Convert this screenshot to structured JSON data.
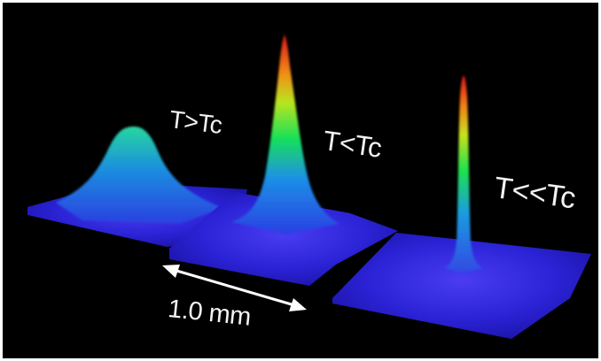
{
  "labels": {
    "above_tc": "T>Tc",
    "below_tc": "T<Tc",
    "far_below_tc": "T<<Tc",
    "scale_bar": "1.0 mm"
  },
  "colors": {
    "background": "#000000",
    "frame": "#ffffff",
    "plate": "#2b23d6",
    "peak_low": "#1e6cf0",
    "peak_mid": "#18e05a",
    "peak_high": "#e01a1a",
    "text": "#f2f2f2"
  }
}
